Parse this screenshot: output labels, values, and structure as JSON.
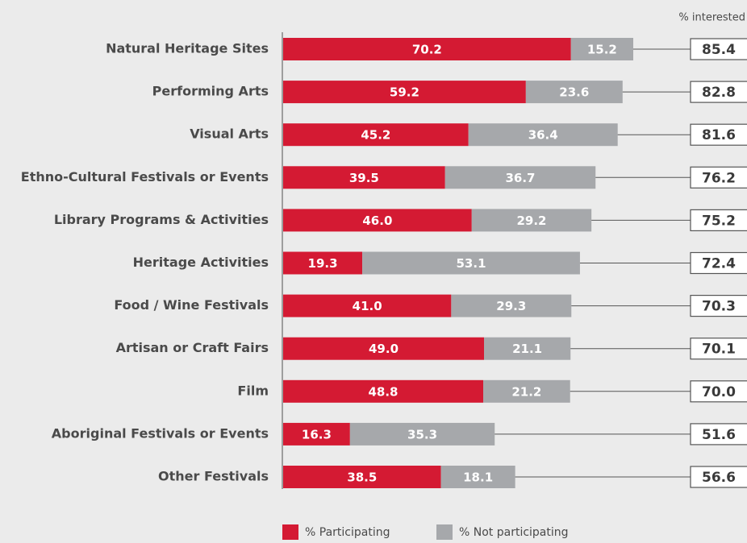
{
  "chart_data": {
    "type": "stacked-bar-horizontal",
    "categories": [
      "Natural Heritage Sites",
      "Performing Arts",
      "Visual Arts",
      "Ethno-Cultural Festivals or Events",
      "Library Programs & Activities",
      "Heritage Activities",
      "Food / Wine Festivals",
      "Artisan or Craft Fairs",
      "Film",
      "Aboriginal Festivals or Events",
      "Other Festivals"
    ],
    "series": [
      {
        "name": "% Participating",
        "color": "#d41a33",
        "values": [
          70.2,
          59.2,
          45.2,
          39.5,
          46.0,
          19.3,
          41.0,
          49.0,
          48.8,
          16.3,
          38.5
        ],
        "value_labels": [
          "70.2",
          "59.2",
          "45.2",
          "39.5",
          "46.0",
          "19.3",
          "41.0",
          "49.0",
          "48.8",
          "16.3",
          "38.5"
        ]
      },
      {
        "name": "% Not participating",
        "color": "#a6a8ab",
        "values": [
          15.2,
          23.6,
          36.4,
          36.7,
          29.2,
          53.1,
          29.3,
          21.1,
          21.2,
          35.3,
          18.1
        ]
      }
    ],
    "totals": {
      "name": "% interested",
      "values": [
        85.4,
        82.8,
        81.6,
        76.2,
        75.2,
        72.4,
        70.3,
        70.1,
        70.0,
        51.6,
        56.6
      ],
      "value_labels": [
        "85.4",
        "82.8",
        "81.6",
        "76.2",
        "75.2",
        "72.4",
        "70.3",
        "70.1",
        "70.0",
        "51.6",
        "56.6"
      ]
    }
  }
}
